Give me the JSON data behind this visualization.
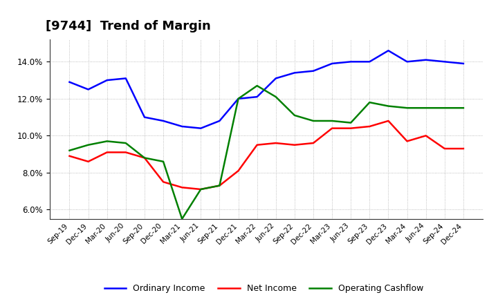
{
  "title": "[9744]  Trend of Margin",
  "x_labels": [
    "Sep-19",
    "Dec-19",
    "Mar-20",
    "Jun-20",
    "Sep-20",
    "Dec-20",
    "Mar-21",
    "Jun-21",
    "Sep-21",
    "Dec-21",
    "Mar-22",
    "Jun-22",
    "Sep-22",
    "Dec-22",
    "Mar-23",
    "Jun-23",
    "Sep-23",
    "Dec-23",
    "Mar-24",
    "Jun-24",
    "Sep-24",
    "Dec-24"
  ],
  "ordinary_income": [
    12.9,
    12.5,
    13.0,
    13.1,
    11.0,
    10.8,
    10.5,
    10.4,
    10.8,
    12.0,
    12.1,
    13.1,
    13.4,
    13.5,
    13.9,
    14.0,
    14.0,
    14.6,
    14.0,
    14.1,
    14.0,
    13.9
  ],
  "net_income": [
    8.9,
    8.6,
    9.1,
    9.1,
    8.8,
    7.5,
    7.2,
    7.1,
    7.3,
    8.1,
    9.5,
    9.6,
    9.5,
    9.6,
    10.4,
    10.4,
    10.5,
    10.8,
    9.7,
    10.0,
    9.3,
    9.3
  ],
  "operating_cashflow": [
    9.2,
    9.5,
    9.7,
    9.6,
    8.8,
    8.6,
    5.5,
    7.1,
    7.3,
    12.0,
    12.7,
    12.1,
    11.1,
    10.8,
    10.8,
    10.7,
    11.8,
    11.6,
    11.5,
    11.5,
    11.5,
    11.5
  ],
  "ylim": [
    5.5,
    15.2
  ],
  "yticks": [
    6.0,
    8.0,
    10.0,
    12.0,
    14.0
  ],
  "line_colors": {
    "ordinary_income": "#0000FF",
    "net_income": "#FF0000",
    "operating_cashflow": "#008000"
  },
  "background_color": "#FFFFFF",
  "plot_bg_color": "#FFFFFF",
  "grid_color": "#AAAAAA",
  "title_fontsize": 13,
  "legend_labels": [
    "Ordinary Income",
    "Net Income",
    "Operating Cashflow"
  ]
}
